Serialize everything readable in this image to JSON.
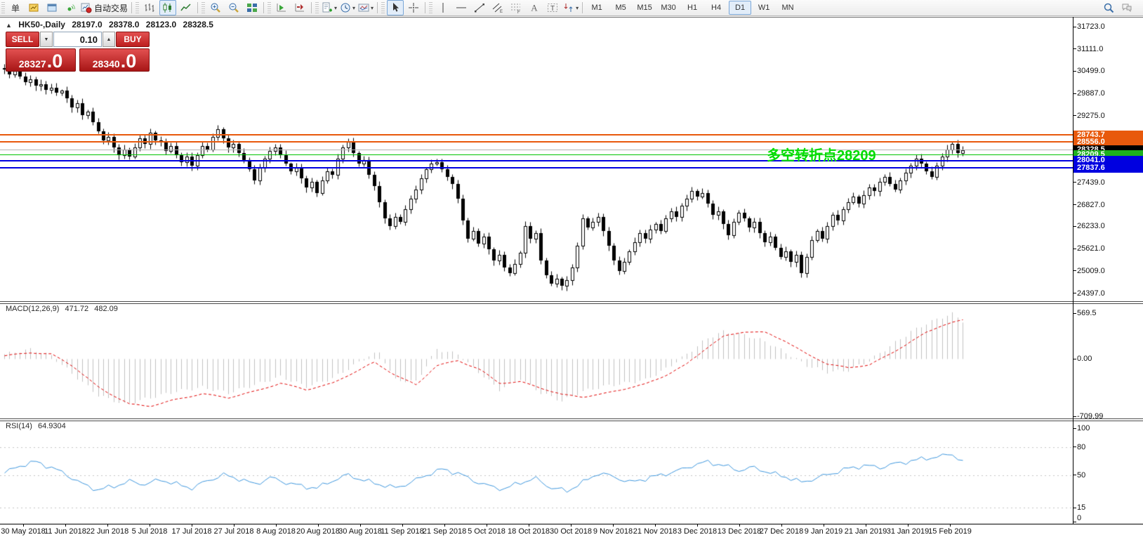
{
  "toolbar": {
    "groups": [
      {
        "items": [
          {
            "icon": "new-order-icon",
            "label": "单"
          },
          {
            "icon": "new-chart-icon"
          },
          {
            "icon": "profiles-icon"
          },
          {
            "icon": "signals-icon"
          },
          {
            "icon": "autotrading-icon",
            "label": "自动交易"
          }
        ]
      },
      {
        "items": [
          {
            "icon": "bar-chart-icon"
          },
          {
            "icon": "candlestick-chart-icon",
            "active": true
          },
          {
            "icon": "line-chart-icon"
          }
        ]
      },
      {
        "items": [
          {
            "icon": "zoom-in-icon"
          },
          {
            "icon": "zoom-out-icon"
          },
          {
            "icon": "tile-windows-icon"
          }
        ]
      },
      {
        "items": [
          {
            "icon": "auto-scroll-icon"
          },
          {
            "icon": "chart-shift-icon"
          }
        ]
      },
      {
        "items": [
          {
            "icon": "indicators-icon",
            "dropdown": true
          },
          {
            "icon": "periods-icon",
            "dropdown": true
          },
          {
            "icon": "templates-icon",
            "dropdown": true
          }
        ]
      },
      {
        "items": [
          {
            "icon": "cursor-icon",
            "active": true
          },
          {
            "icon": "crosshair-icon"
          }
        ]
      },
      {
        "items": [
          {
            "icon": "vertical-line-icon"
          },
          {
            "icon": "horizontal-line-icon"
          },
          {
            "icon": "trendline-icon"
          },
          {
            "icon": "equidistant-channel-icon"
          },
          {
            "icon": "fibonacci-icon"
          },
          {
            "icon": "text-icon"
          },
          {
            "icon": "text-label-icon"
          },
          {
            "icon": "arrows-icon",
            "dropdown": true
          }
        ]
      }
    ],
    "timeframes": [
      "M1",
      "M5",
      "M15",
      "M30",
      "H1",
      "H4",
      "D1",
      "W1",
      "MN"
    ],
    "active_timeframe": "D1",
    "right_icons": [
      "search-icon",
      "chat-icon"
    ]
  },
  "chart_header": {
    "collapse_arrow": "▲",
    "symbol": "HK50-,Daily",
    "open": "28197.0",
    "high": "28378.0",
    "low": "28123.0",
    "close": "28328.5"
  },
  "trade_panel": {
    "sell_label": "SELL",
    "buy_label": "BUY",
    "volume": "0.10",
    "step_down": "▼",
    "step_up": "▲",
    "sell_price_main": "28327",
    "sell_price_big": ".0",
    "buy_price_main": "28340",
    "buy_price_big": ".0"
  },
  "annotation": {
    "text": "多空转折点28209",
    "color": "#00dd00"
  },
  "price_axis": {
    "ticks": [
      31723.0,
      31111.0,
      30499.0,
      29887.0,
      29275.0,
      27439.0,
      26827.0,
      26233.0,
      25621.0,
      25009.0,
      24397.0
    ]
  },
  "line_labels": [
    {
      "label": "28743.7",
      "price": 28743.7,
      "color": "#e8590c",
      "thick": 2
    },
    {
      "label": "28556.0",
      "price": 28556.0,
      "color": "#e8590c",
      "thick": 2
    },
    {
      "label": "28328.5",
      "price": 28328.5,
      "color": "#000000",
      "line_color": "#b4b4b4",
      "thick": 1
    },
    {
      "label": "28209.5",
      "price": 28209.5,
      "color": "#1db11d",
      "line_color": "#00c400",
      "thick": 1
    },
    {
      "label": "28041.0",
      "price": 28041.0,
      "color": "#0000e0",
      "thick": 2
    },
    {
      "label": "27837.6",
      "price": 27837.6,
      "color": "#0000e0",
      "thick": 2
    }
  ],
  "indicators": {
    "macd": {
      "name": "MACD(12,26,9)",
      "value_main": "471.72",
      "value_signal": "482.09",
      "axis_ticks": [
        {
          "label": "569.5",
          "value": 569.5
        },
        {
          "label": "0.00",
          "value": 0
        },
        {
          "label": "-709.99",
          "value": -709.99
        }
      ]
    },
    "rsi": {
      "name": "RSI(14)",
      "value": "64.9304",
      "axis_ticks": [
        {
          "label": "100",
          "value": 100
        },
        {
          "label": "80",
          "value": 80
        },
        {
          "label": "50",
          "value": 50
        },
        {
          "label": "15",
          "value": 15
        },
        {
          "label": "0",
          "value": 0
        }
      ],
      "levels": [
        80,
        50,
        15
      ]
    }
  },
  "date_axis": [
    "30 May 2018",
    "11 Jun 2018",
    "22 Jun 2018",
    "5 Jul 2018",
    "17 Jul 2018",
    "27 Jul 2018",
    "8 Aug 2018",
    "20 Aug 2018",
    "30 Aug 2018",
    "11 Sep 2018",
    "21 Sep 2018",
    "5 Oct 2018",
    "18 Oct 2018",
    "30 Oct 2018",
    "9 Nov 2018",
    "21 Nov 2018",
    "3 Dec 2018",
    "13 Dec 2018",
    "27 Dec 2018",
    "9 Jan 2019",
    "21 Jan 2019",
    "31 Jan 2019",
    "15 Feb 2019"
  ],
  "chart_data": [
    {
      "type": "candlestick",
      "title": "HK50-,Daily",
      "last_bar": {
        "open": 28197.0,
        "high": 28378.0,
        "low": 28123.0,
        "close": 28328.5
      },
      "ylim": [
        24150,
        31990
      ],
      "y_ticks": [
        31723,
        31111,
        30499,
        29887,
        29275,
        27439,
        26827,
        26233,
        25621,
        25009,
        24397
      ],
      "closes": [
        30550,
        30420,
        30500,
        30350,
        30200,
        30280,
        30100,
        30150,
        29980,
        30050,
        29900,
        29960,
        29750,
        29500,
        29620,
        29300,
        29380,
        29100,
        28850,
        28600,
        28700,
        28400,
        28200,
        28350,
        28150,
        28400,
        28650,
        28500,
        28800,
        28600,
        28550,
        28300,
        28450,
        28200,
        28000,
        28150,
        27900,
        28200,
        28450,
        28350,
        28700,
        28900,
        28650,
        28400,
        28500,
        28250,
        28050,
        27800,
        27500,
        27850,
        28100,
        28300,
        28400,
        28200,
        27950,
        27750,
        27850,
        27550,
        27300,
        27450,
        27150,
        27500,
        27750,
        27650,
        28100,
        28400,
        28550,
        28250,
        27950,
        28050,
        27650,
        27350,
        26900,
        26450,
        26250,
        26500,
        26350,
        26700,
        27000,
        27250,
        27550,
        27800,
        27950,
        28000,
        27800,
        27600,
        27400,
        27000,
        26400,
        25900,
        26100,
        25750,
        25950,
        25600,
        25300,
        25450,
        25100,
        24950,
        25200,
        25500,
        26250,
        25900,
        26050,
        25300,
        24900,
        24650,
        24800,
        24600,
        24750,
        25100,
        25700,
        26450,
        26200,
        26350,
        26500,
        26100,
        25700,
        25300,
        25000,
        25250,
        25550,
        25800,
        26050,
        25900,
        26150,
        26300,
        26100,
        26450,
        26650,
        26500,
        26800,
        27000,
        27200,
        27050,
        27150,
        26850,
        26550,
        26650,
        26300,
        26000,
        26350,
        26600,
        26450,
        26200,
        26350,
        26050,
        25800,
        25950,
        25650,
        25400,
        25550,
        25250,
        25450,
        24950,
        25400,
        25850,
        26100,
        25900,
        26250,
        26550,
        26400,
        26700,
        26900,
        27050,
        26850,
        27100,
        27300,
        27200,
        27450,
        27600,
        27400,
        27250,
        27500,
        27700,
        27900,
        28100,
        27950,
        27750,
        27600,
        27900,
        28150,
        28350,
        28500,
        28250,
        28328.5
      ]
    },
    {
      "type": "macd_histogram",
      "title": "MACD(12,26,9)",
      "ylim": [
        -740,
        600
      ],
      "y_ticks": [
        569.5,
        0,
        -709.99
      ],
      "signal_keypoints": [
        [
          0,
          40
        ],
        [
          5,
          80
        ],
        [
          9,
          60
        ],
        [
          13,
          -80
        ],
        [
          18,
          -350
        ],
        [
          24,
          -560
        ],
        [
          28,
          -583
        ],
        [
          33,
          -500
        ],
        [
          38,
          -430
        ],
        [
          43,
          -480
        ],
        [
          48,
          -400
        ],
        [
          53,
          -300
        ],
        [
          58,
          -380
        ],
        [
          63,
          -300
        ],
        [
          66,
          -200
        ],
        [
          71,
          -40
        ],
        [
          75,
          -200
        ],
        [
          79,
          -320
        ],
        [
          83,
          -80
        ],
        [
          87,
          -20
        ],
        [
          91,
          -120
        ],
        [
          95,
          -300
        ],
        [
          99,
          -280
        ],
        [
          103,
          -360
        ],
        [
          107,
          -440
        ],
        [
          111,
          -470
        ],
        [
          115,
          -430
        ],
        [
          119,
          -370
        ],
        [
          123,
          -310
        ],
        [
          127,
          -200
        ],
        [
          131,
          -60
        ],
        [
          135,
          150
        ],
        [
          138,
          280
        ],
        [
          142,
          340
        ],
        [
          146,
          330
        ],
        [
          150,
          220
        ],
        [
          154,
          60
        ],
        [
          158,
          -60
        ],
        [
          162,
          -110
        ],
        [
          166,
          -70
        ],
        [
          170,
          60
        ],
        [
          174,
          220
        ],
        [
          177,
          330
        ],
        [
          180,
          420
        ],
        [
          182,
          455
        ],
        [
          184,
          482.1
        ]
      ],
      "hist_keypoints": [
        [
          0,
          60
        ],
        [
          5,
          120
        ],
        [
          9,
          40
        ],
        [
          13,
          -180
        ],
        [
          18,
          -450
        ],
        [
          23,
          -560
        ],
        [
          28,
          -480
        ],
        [
          33,
          -400
        ],
        [
          38,
          -350
        ],
        [
          43,
          -420
        ],
        [
          48,
          -320
        ],
        [
          53,
          -220
        ],
        [
          58,
          -340
        ],
        [
          63,
          -240
        ],
        [
          66,
          -120
        ],
        [
          70,
          40
        ],
        [
          72,
          80
        ],
        [
          75,
          -260
        ],
        [
          79,
          -280
        ],
        [
          83,
          120
        ],
        [
          87,
          60
        ],
        [
          91,
          -160
        ],
        [
          95,
          -380
        ],
        [
          99,
          -240
        ],
        [
          103,
          -420
        ],
        [
          107,
          -520
        ],
        [
          111,
          -400
        ],
        [
          115,
          -340
        ],
        [
          119,
          -300
        ],
        [
          123,
          -260
        ],
        [
          127,
          -120
        ],
        [
          131,
          60
        ],
        [
          135,
          260
        ],
        [
          138,
          340
        ],
        [
          142,
          300
        ],
        [
          146,
          220
        ],
        [
          150,
          80
        ],
        [
          154,
          -80
        ],
        [
          158,
          -160
        ],
        [
          162,
          -140
        ],
        [
          166,
          -20
        ],
        [
          170,
          160
        ],
        [
          174,
          340
        ],
        [
          177,
          440
        ],
        [
          180,
          520
        ],
        [
          182,
          560
        ],
        [
          184,
          471.7
        ]
      ]
    },
    {
      "type": "line",
      "title": "RSI(14)",
      "ylim": [
        0,
        100
      ],
      "levels": [
        80,
        50,
        15
      ],
      "keypoints": [
        [
          0,
          52
        ],
        [
          3,
          60
        ],
        [
          6,
          64
        ],
        [
          9,
          58
        ],
        [
          12,
          50
        ],
        [
          15,
          40
        ],
        [
          18,
          34
        ],
        [
          21,
          38
        ],
        [
          24,
          43
        ],
        [
          27,
          40
        ],
        [
          30,
          45
        ],
        [
          33,
          40
        ],
        [
          36,
          36
        ],
        [
          39,
          44
        ],
        [
          42,
          50
        ],
        [
          45,
          46
        ],
        [
          48,
          40
        ],
        [
          51,
          47
        ],
        [
          54,
          42
        ],
        [
          57,
          38
        ],
        [
          60,
          36
        ],
        [
          63,
          44
        ],
        [
          66,
          50
        ],
        [
          69,
          44
        ],
        [
          72,
          40
        ],
        [
          75,
          36
        ],
        [
          78,
          42
        ],
        [
          81,
          50
        ],
        [
          84,
          56
        ],
        [
          87,
          52
        ],
        [
          90,
          44
        ],
        [
          93,
          38
        ],
        [
          96,
          35
        ],
        [
          99,
          42
        ],
        [
          102,
          46
        ],
        [
          105,
          36
        ],
        [
          108,
          33
        ],
        [
          111,
          42
        ],
        [
          114,
          52
        ],
        [
          117,
          48
        ],
        [
          120,
          42
        ],
        [
          123,
          46
        ],
        [
          126,
          50
        ],
        [
          129,
          54
        ],
        [
          132,
          60
        ],
        [
          135,
          64
        ],
        [
          138,
          60
        ],
        [
          141,
          55
        ],
        [
          144,
          58
        ],
        [
          147,
          52
        ],
        [
          150,
          48
        ],
        [
          153,
          42
        ],
        [
          156,
          47
        ],
        [
          159,
          52
        ],
        [
          162,
          57
        ],
        [
          165,
          60
        ],
        [
          168,
          58
        ],
        [
          171,
          62
        ],
        [
          174,
          65
        ],
        [
          177,
          68
        ],
        [
          180,
          70
        ],
        [
          182,
          73
        ],
        [
          183,
          67
        ],
        [
          184,
          64.9
        ]
      ]
    }
  ]
}
